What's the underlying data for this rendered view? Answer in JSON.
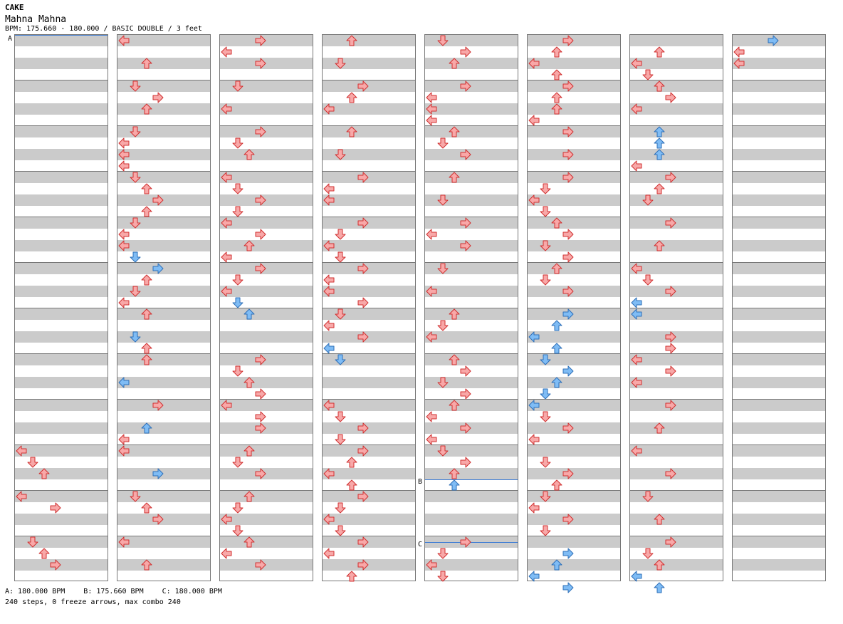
{
  "header": {
    "artist": "CAKE",
    "song": "Mahna Mahna",
    "subtitle": "BPM: 175.660 - 180.000 / BASIC DOUBLE / 3 feet"
  },
  "markers": [
    {
      "label": "A",
      "column": 0,
      "beat": 0
    },
    {
      "label": "B",
      "column": 4,
      "beat": 39
    },
    {
      "label": "C",
      "column": 4,
      "beat": 44.5
    }
  ],
  "footer": {
    "bpm": [
      {
        "text": "A: 180.000 BPM"
      },
      {
        "text": "B: 175.660 BPM"
      },
      {
        "text": "C: 180.000 BPM"
      }
    ],
    "stats": "240 steps, 0 freeze arrows, max combo 240"
  },
  "colors": {
    "note_red": "#f8a8a8",
    "note_red_stroke": "#d03030",
    "note_blue": "#7fbcf5",
    "note_blue_stroke": "#2e6fb8",
    "band": "#cbcbcb",
    "marker": "#3a7bd5"
  },
  "columns": [
    [
      {
        "b": 36,
        "d": "L"
      },
      {
        "b": 37,
        "d": "D"
      },
      {
        "b": 38,
        "d": "U"
      },
      {
        "b": 40,
        "d": "L"
      },
      {
        "b": 41,
        "d": "R"
      },
      {
        "b": 44,
        "d": "D"
      },
      {
        "b": 45,
        "d": "U"
      },
      {
        "b": 46,
        "d": "R"
      }
    ],
    [
      {
        "b": 0,
        "d": "L"
      },
      {
        "b": 2,
        "d": "U"
      },
      {
        "b": 4,
        "d": "D"
      },
      {
        "b": 5,
        "d": "R"
      },
      {
        "b": 6,
        "d": "U"
      },
      {
        "b": 8,
        "d": "D"
      },
      {
        "b": 9,
        "d": "L"
      },
      {
        "b": 10,
        "d": "L"
      },
      {
        "b": 11,
        "d": "L"
      },
      {
        "b": 12,
        "d": "D"
      },
      {
        "b": 13,
        "d": "U"
      },
      {
        "b": 14,
        "d": "R"
      },
      {
        "b": 15,
        "d": "U"
      },
      {
        "b": 16,
        "d": "D"
      },
      {
        "b": 17,
        "d": "L"
      },
      {
        "b": 18,
        "d": "L"
      },
      {
        "b": 19,
        "d": "D",
        "c": "b"
      },
      {
        "b": 20,
        "d": "R",
        "c": "b"
      },
      {
        "b": 21,
        "d": "U"
      },
      {
        "b": 22,
        "d": "D"
      },
      {
        "b": 23,
        "d": "L"
      },
      {
        "b": 24,
        "d": "U"
      },
      {
        "b": 26,
        "d": "D",
        "c": "b"
      },
      {
        "b": 27,
        "d": "U"
      },
      {
        "b": 28,
        "d": "U"
      },
      {
        "b": 30,
        "d": "L",
        "c": "b"
      },
      {
        "b": 32,
        "d": "R"
      },
      {
        "b": 34,
        "d": "U",
        "c": "b"
      },
      {
        "b": 35,
        "d": "L"
      },
      {
        "b": 36,
        "d": "L"
      },
      {
        "b": 38,
        "d": "R",
        "c": "b"
      },
      {
        "b": 40,
        "d": "D"
      },
      {
        "b": 41,
        "d": "U"
      },
      {
        "b": 42,
        "d": "R"
      },
      {
        "b": 44,
        "d": "L"
      },
      {
        "b": 46,
        "d": "U"
      }
    ],
    [
      {
        "b": 0,
        "d": "R"
      },
      {
        "b": 1,
        "d": "L"
      },
      {
        "b": 2,
        "d": "R"
      },
      {
        "b": 4,
        "d": "D"
      },
      {
        "b": 6,
        "d": "L"
      },
      {
        "b": 8,
        "d": "R"
      },
      {
        "b": 9,
        "d": "D"
      },
      {
        "b": 10,
        "d": "U"
      },
      {
        "b": 12,
        "d": "L"
      },
      {
        "b": 13,
        "d": "D"
      },
      {
        "b": 14,
        "d": "R"
      },
      {
        "b": 15,
        "d": "D"
      },
      {
        "b": 16,
        "d": "L"
      },
      {
        "b": 17,
        "d": "R"
      },
      {
        "b": 18,
        "d": "U"
      },
      {
        "b": 19,
        "d": "L"
      },
      {
        "b": 20,
        "d": "R"
      },
      {
        "b": 21,
        "d": "D"
      },
      {
        "b": 22,
        "d": "L"
      },
      {
        "b": 23,
        "d": "D",
        "c": "b"
      },
      {
        "b": 24,
        "d": "U",
        "c": "b"
      },
      {
        "b": 28,
        "d": "R"
      },
      {
        "b": 29,
        "d": "D"
      },
      {
        "b": 30,
        "d": "U"
      },
      {
        "b": 31,
        "d": "R"
      },
      {
        "b": 32,
        "d": "L"
      },
      {
        "b": 33,
        "d": "R"
      },
      {
        "b": 34,
        "d": "R"
      },
      {
        "b": 36,
        "d": "U"
      },
      {
        "b": 37,
        "d": "D"
      },
      {
        "b": 38,
        "d": "R"
      },
      {
        "b": 40,
        "d": "U"
      },
      {
        "b": 41,
        "d": "D"
      },
      {
        "b": 42,
        "d": "L"
      },
      {
        "b": 43,
        "d": "D"
      },
      {
        "b": 44,
        "d": "U"
      },
      {
        "b": 45,
        "d": "L"
      },
      {
        "b": 46,
        "d": "R"
      }
    ],
    [
      {
        "b": 0,
        "d": "U"
      },
      {
        "b": 2,
        "d": "D"
      },
      {
        "b": 4,
        "d": "R"
      },
      {
        "b": 5,
        "d": "U"
      },
      {
        "b": 6,
        "d": "L"
      },
      {
        "b": 8,
        "d": "U"
      },
      {
        "b": 10,
        "d": "D"
      },
      {
        "b": 12,
        "d": "R"
      },
      {
        "b": 13,
        "d": "L"
      },
      {
        "b": 14,
        "d": "L"
      },
      {
        "b": 16,
        "d": "R"
      },
      {
        "b": 17,
        "d": "D"
      },
      {
        "b": 18,
        "d": "L"
      },
      {
        "b": 19,
        "d": "D"
      },
      {
        "b": 20,
        "d": "R"
      },
      {
        "b": 21,
        "d": "L"
      },
      {
        "b": 22,
        "d": "L"
      },
      {
        "b": 23,
        "d": "R"
      },
      {
        "b": 24,
        "d": "D"
      },
      {
        "b": 25,
        "d": "L"
      },
      {
        "b": 26,
        "d": "R"
      },
      {
        "b": 27,
        "d": "L",
        "c": "b"
      },
      {
        "b": 28,
        "d": "D",
        "c": "b"
      },
      {
        "b": 32,
        "d": "L"
      },
      {
        "b": 33,
        "d": "D"
      },
      {
        "b": 34,
        "d": "R"
      },
      {
        "b": 35,
        "d": "D"
      },
      {
        "b": 36,
        "d": "R"
      },
      {
        "b": 37,
        "d": "U"
      },
      {
        "b": 38,
        "d": "L"
      },
      {
        "b": 39,
        "d": "U"
      },
      {
        "b": 40,
        "d": "R"
      },
      {
        "b": 41,
        "d": "D"
      },
      {
        "b": 42,
        "d": "L"
      },
      {
        "b": 43,
        "d": "D"
      },
      {
        "b": 44,
        "d": "R"
      },
      {
        "b": 45,
        "d": "L"
      },
      {
        "b": 46,
        "d": "R"
      },
      {
        "b": 47,
        "d": "U"
      }
    ],
    [
      {
        "b": 0,
        "d": "D"
      },
      {
        "b": 1,
        "d": "R"
      },
      {
        "b": 2,
        "d": "U"
      },
      {
        "b": 4,
        "d": "R"
      },
      {
        "b": 5,
        "d": "L"
      },
      {
        "b": 6,
        "d": "L"
      },
      {
        "b": 7,
        "d": "L"
      },
      {
        "b": 8,
        "d": "U"
      },
      {
        "b": 9,
        "d": "D"
      },
      {
        "b": 10,
        "d": "R"
      },
      {
        "b": 12,
        "d": "U"
      },
      {
        "b": 14,
        "d": "D"
      },
      {
        "b": 16,
        "d": "R"
      },
      {
        "b": 17,
        "d": "L"
      },
      {
        "b": 18,
        "d": "R"
      },
      {
        "b": 20,
        "d": "D"
      },
      {
        "b": 22,
        "d": "L"
      },
      {
        "b": 24,
        "d": "U"
      },
      {
        "b": 25,
        "d": "D"
      },
      {
        "b": 26,
        "d": "L"
      },
      {
        "b": 28,
        "d": "U"
      },
      {
        "b": 29,
        "d": "R"
      },
      {
        "b": 30,
        "d": "D"
      },
      {
        "b": 31,
        "d": "R"
      },
      {
        "b": 32,
        "d": "U"
      },
      {
        "b": 33,
        "d": "L"
      },
      {
        "b": 34,
        "d": "R"
      },
      {
        "b": 35,
        "d": "L"
      },
      {
        "b": 36,
        "d": "D"
      },
      {
        "b": 37,
        "d": "R"
      },
      {
        "b": 38,
        "d": "U"
      },
      {
        "b": 39,
        "d": "U",
        "c": "b"
      },
      {
        "b": 44,
        "d": "R"
      },
      {
        "b": 45,
        "d": "D"
      },
      {
        "b": 46,
        "d": "L"
      },
      {
        "b": 47,
        "d": "D"
      }
    ],
    [
      {
        "b": 0,
        "d": "R"
      },
      {
        "b": 1,
        "d": "U"
      },
      {
        "b": 2,
        "d": "L"
      },
      {
        "b": 3,
        "d": "U"
      },
      {
        "b": 4,
        "d": "R"
      },
      {
        "b": 5,
        "d": "U"
      },
      {
        "b": 6,
        "d": "U"
      },
      {
        "b": 7,
        "d": "L"
      },
      {
        "b": 8,
        "d": "R"
      },
      {
        "b": 10,
        "d": "R"
      },
      {
        "b": 12,
        "d": "R"
      },
      {
        "b": 13,
        "d": "D"
      },
      {
        "b": 14,
        "d": "L"
      },
      {
        "b": 15,
        "d": "D"
      },
      {
        "b": 16,
        "d": "U"
      },
      {
        "b": 17,
        "d": "R"
      },
      {
        "b": 18,
        "d": "D"
      },
      {
        "b": 19,
        "d": "R"
      },
      {
        "b": 20,
        "d": "U"
      },
      {
        "b": 21,
        "d": "D"
      },
      {
        "b": 22,
        "d": "R"
      },
      {
        "b": 24,
        "d": "R",
        "c": "b"
      },
      {
        "b": 25,
        "d": "U",
        "c": "b"
      },
      {
        "b": 26,
        "d": "L",
        "c": "b"
      },
      {
        "b": 27,
        "d": "U",
        "c": "b"
      },
      {
        "b": 28,
        "d": "D",
        "c": "b"
      },
      {
        "b": 29,
        "d": "R",
        "c": "b"
      },
      {
        "b": 30,
        "d": "U",
        "c": "b"
      },
      {
        "b": 31,
        "d": "D",
        "c": "b"
      },
      {
        "b": 32,
        "d": "L",
        "c": "b"
      },
      {
        "b": 33,
        "d": "D"
      },
      {
        "b": 34,
        "d": "R"
      },
      {
        "b": 35,
        "d": "L"
      },
      {
        "b": 37,
        "d": "D"
      },
      {
        "b": 38,
        "d": "R"
      },
      {
        "b": 39,
        "d": "U"
      },
      {
        "b": 40,
        "d": "D"
      },
      {
        "b": 41,
        "d": "L"
      },
      {
        "b": 42,
        "d": "R"
      },
      {
        "b": 43,
        "d": "D"
      },
      {
        "b": 45,
        "d": "R",
        "c": "b"
      },
      {
        "b": 46,
        "d": "U",
        "c": "b"
      },
      {
        "b": 47,
        "d": "L",
        "c": "b"
      },
      {
        "b": 48,
        "d": "R",
        "c": "b"
      }
    ],
    [
      {
        "b": 1,
        "d": "U"
      },
      {
        "b": 2,
        "d": "L"
      },
      {
        "b": 3,
        "d": "D"
      },
      {
        "b": 4,
        "d": "U"
      },
      {
        "b": 5,
        "d": "R"
      },
      {
        "b": 6,
        "d": "L"
      },
      {
        "b": 8,
        "d": "U",
        "c": "b"
      },
      {
        "b": 9,
        "d": "U",
        "c": "b"
      },
      {
        "b": 10,
        "d": "U",
        "c": "b"
      },
      {
        "b": 11,
        "d": "L"
      },
      {
        "b": 12,
        "d": "R"
      },
      {
        "b": 13,
        "d": "U"
      },
      {
        "b": 14,
        "d": "D"
      },
      {
        "b": 16,
        "d": "R"
      },
      {
        "b": 18,
        "d": "U"
      },
      {
        "b": 20,
        "d": "L"
      },
      {
        "b": 21,
        "d": "D"
      },
      {
        "b": 22,
        "d": "R"
      },
      {
        "b": 23,
        "d": "L",
        "c": "b"
      },
      {
        "b": 24,
        "d": "L",
        "c": "b"
      },
      {
        "b": 26,
        "d": "R"
      },
      {
        "b": 27,
        "d": "R"
      },
      {
        "b": 28,
        "d": "L"
      },
      {
        "b": 29,
        "d": "R"
      },
      {
        "b": 30,
        "d": "L"
      },
      {
        "b": 32,
        "d": "R"
      },
      {
        "b": 34,
        "d": "U"
      },
      {
        "b": 36,
        "d": "L"
      },
      {
        "b": 38,
        "d": "R"
      },
      {
        "b": 40,
        "d": "D"
      },
      {
        "b": 42,
        "d": "U"
      },
      {
        "b": 44,
        "d": "R"
      },
      {
        "b": 45,
        "d": "D"
      },
      {
        "b": 46,
        "d": "U"
      },
      {
        "b": 47,
        "d": "L",
        "c": "b"
      },
      {
        "b": 48,
        "d": "U",
        "c": "b"
      }
    ],
    [
      {
        "b": 0,
        "d": "R",
        "c": "b"
      },
      {
        "b": 1,
        "d": "L"
      },
      {
        "b": 2,
        "d": "L"
      }
    ]
  ]
}
